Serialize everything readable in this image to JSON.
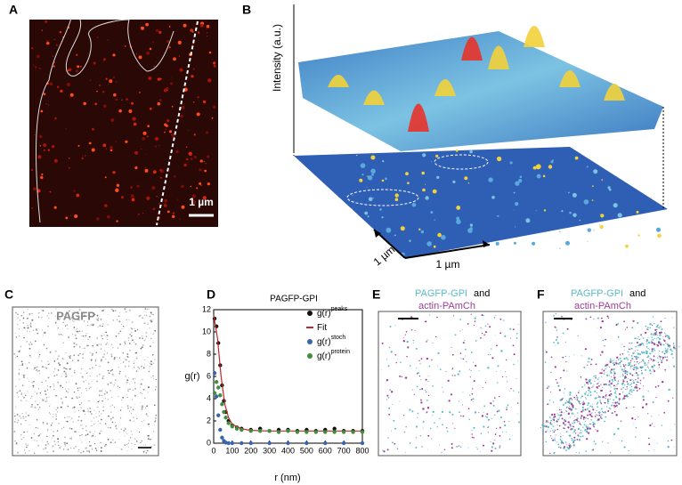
{
  "panels": {
    "A": {
      "label": "A",
      "scale": "1 µm"
    },
    "B": {
      "label": "B",
      "z_axis": "Intensity (a.u.)",
      "x_scale": "1 µm",
      "y_scale": "1 µm"
    },
    "C": {
      "label": "C",
      "caption": "PAGFP"
    },
    "D": {
      "label": "D"
    },
    "E": {
      "label": "E",
      "line1": "PAGFP-GPI",
      "line1b": "and",
      "line2": "actin-PAmCh"
    },
    "F": {
      "label": "F",
      "line1": "PAGFP-GPI",
      "line1b": "and",
      "line2": "actin-PAmCh"
    }
  },
  "chart_data": {
    "type": "scatter",
    "title": "PAGFP-GPI",
    "x_label": "r (nm)",
    "y_label": "g(r)",
    "xlim": [
      0,
      800
    ],
    "xticks": [
      0,
      100,
      200,
      300,
      400,
      500,
      600,
      700,
      800
    ],
    "ylim": [
      0,
      12
    ],
    "yticks": [
      0,
      2,
      4,
      6,
      8,
      10,
      12
    ],
    "series": [
      {
        "name": "g(r)",
        "sup": "peaks",
        "color": "#111111",
        "mode": "markers",
        "x": [
          5,
          15,
          25,
          35,
          45,
          55,
          65,
          80,
          100,
          125,
          150,
          200,
          250,
          300,
          350,
          400,
          450,
          500,
          550,
          600,
          650,
          700,
          750,
          800
        ],
        "values": [
          11.2,
          10.5,
          9,
          7,
          5.2,
          3.8,
          2.8,
          2,
          1.6,
          1.4,
          1.3,
          1.2,
          1.3,
          1.1,
          1.2,
          1.2,
          1.1,
          1.2,
          1.1,
          1.2,
          1.3,
          1.1,
          1.1,
          1.1
        ]
      },
      {
        "name": "Fit",
        "color": "#c0282d",
        "mode": "line",
        "x": [
          0,
          20,
          40,
          60,
          80,
          100,
          150,
          200,
          300,
          400,
          500,
          600,
          700,
          800
        ],
        "values": [
          11.5,
          9.5,
          6,
          3.5,
          2.3,
          1.7,
          1.3,
          1.15,
          1.1,
          1.1,
          1.1,
          1.1,
          1.1,
          1.1
        ]
      },
      {
        "name": "g(r)",
        "sup": "stoch",
        "color": "#3a64b0",
        "mode": "markers",
        "x": [
          5,
          15,
          25,
          35,
          45,
          55,
          65,
          80,
          100,
          150,
          200,
          300,
          400,
          500,
          600,
          700,
          800
        ],
        "values": [
          6.3,
          4.2,
          2.5,
          1.2,
          0.5,
          0.2,
          0.05,
          0,
          0,
          0,
          0,
          0,
          0,
          0,
          0,
          0,
          0
        ]
      },
      {
        "name": "g(r)",
        "sup": "protein",
        "color": "#3f8f3a",
        "mode": "markers",
        "x": [
          5,
          15,
          25,
          35,
          45,
          55,
          65,
          80,
          100,
          125,
          150,
          200,
          250,
          300,
          350,
          400,
          450,
          500,
          550,
          600,
          650,
          700,
          750,
          800
        ],
        "values": [
          4.5,
          5.5,
          5,
          4.3,
          3.5,
          2.8,
          2.3,
          1.8,
          1.5,
          1.3,
          1.2,
          1.1,
          1.1,
          1.1,
          1,
          1.1,
          1,
          1,
          1,
          1,
          1,
          1,
          1,
          1
        ]
      }
    ]
  }
}
